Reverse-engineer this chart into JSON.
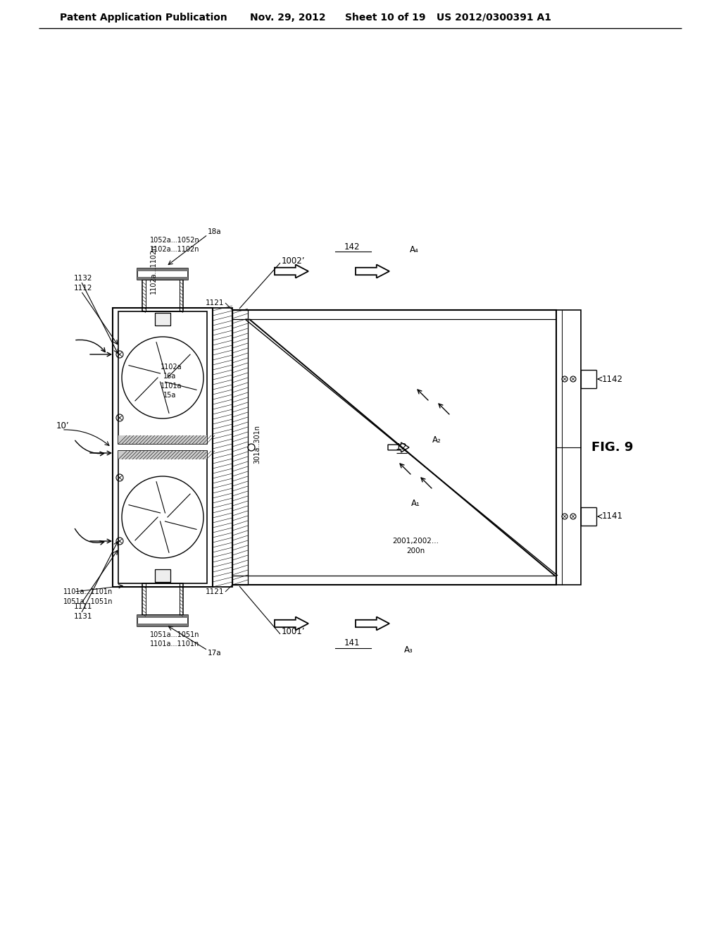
{
  "bg_color": "#ffffff",
  "line_color": "#000000",
  "header_text": "Patent Application Publication",
  "header_date": "Nov. 29, 2012",
  "header_sheet": "Sheet 10 of 19",
  "header_patent": "US 2012/0300391 A1",
  "fig_label": "FIG. 9",
  "title_fontsize": 10,
  "label_fontsize": 8.5
}
